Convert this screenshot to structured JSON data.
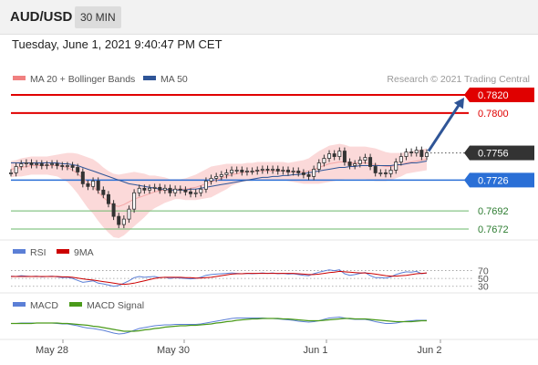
{
  "header": {
    "symbol": "AUD/USD",
    "timeframe": "30 MIN"
  },
  "timestamp": "Tuesday, June 1, 2021 9:40:47 PM CET",
  "legend": {
    "bollinger": {
      "label": "MA 20 + Bollinger Bands",
      "color": "#f08080"
    },
    "ma50": {
      "label": "MA 50",
      "color": "#2f5597"
    },
    "copyright": "Research © 2021 Trading Central"
  },
  "colors": {
    "resistance": "#e00000",
    "support": "#2a6fd6",
    "target": "#6ab86a",
    "current_bg": "#333333",
    "arrow": "#2f5597",
    "bb_fill": "#fbd9d9",
    "candle": "#333333"
  },
  "levels": [
    {
      "value": "0.7820",
      "type": "resistance",
      "boxed": true
    },
    {
      "value": "0.7800",
      "type": "resistance",
      "boxed": false
    },
    {
      "value": "0.7756",
      "type": "current",
      "boxed": true
    },
    {
      "value": "0.7726",
      "type": "support",
      "boxed": true
    },
    {
      "value": "0.7692",
      "type": "target",
      "boxed": false
    },
    {
      "value": "0.7672",
      "type": "target",
      "boxed": false
    }
  ],
  "rsi_panel": {
    "rsi_label": "RSI",
    "ma_label": "9MA",
    "rsi_color": "#5b7fd6",
    "ma_color": "#cc0000",
    "levels": [
      "70",
      "50",
      "30"
    ]
  },
  "macd_panel": {
    "macd_label": "MACD",
    "signal_label": "MACD Signal",
    "macd_color": "#5b7fd6",
    "signal_color": "#4a9a1a"
  },
  "x_axis": [
    "May 28",
    "May 30",
    "Jun 1",
    "Jun 2"
  ],
  "chart_data": {
    "type": "line",
    "title": "AUD/USD",
    "ylim": [
      0.7665,
      0.7826
    ],
    "price_series": [
      0.7734,
      0.7741,
      0.7744,
      0.7745,
      0.7743,
      0.7744,
      0.7742,
      0.7743,
      0.7744,
      0.7742,
      0.7741,
      0.7742,
      0.774,
      0.7735,
      0.7722,
      0.7719,
      0.7725,
      0.7715,
      0.771,
      0.77,
      0.7686,
      0.7677,
      0.7683,
      0.7694,
      0.7712,
      0.7717,
      0.7715,
      0.7717,
      0.7718,
      0.7715,
      0.7717,
      0.7712,
      0.7716,
      0.7715,
      0.7713,
      0.7711,
      0.7712,
      0.7716,
      0.7725,
      0.7728,
      0.773,
      0.7732,
      0.7734,
      0.7737,
      0.7737,
      0.7735,
      0.7736,
      0.7736,
      0.7737,
      0.7738,
      0.7737,
      0.7738,
      0.7736,
      0.7737,
      0.7735,
      0.7736,
      0.7734,
      0.7732,
      0.773,
      0.7738,
      0.7745,
      0.775,
      0.7755,
      0.7752,
      0.7758,
      0.7746,
      0.7742,
      0.7744,
      0.7748,
      0.7751,
      0.7741,
      0.7734,
      0.7734,
      0.7733,
      0.7737,
      0.7746,
      0.7752,
      0.7757,
      0.7756,
      0.7759,
      0.7752,
      0.7756
    ],
    "ma20": [
      0.7738,
      0.7739,
      0.774,
      0.7741,
      0.7742,
      0.7742,
      0.7742,
      0.7742,
      0.7742,
      0.7742,
      0.7741,
      0.774,
      0.7737,
      0.7733,
      0.7728,
      0.7723,
      0.7719,
      0.7713,
      0.7707,
      0.7702,
      0.7698,
      0.7697,
      0.7699,
      0.7702,
      0.7705,
      0.7707,
      0.7709,
      0.7711,
      0.7713,
      0.7714,
      0.7715,
      0.7715,
      0.7716,
      0.7716,
      0.7716,
      0.7717,
      0.7718,
      0.772,
      0.7722,
      0.7724,
      0.7726,
      0.7728,
      0.773,
      0.7732,
      0.7733,
      0.7734,
      0.7735,
      0.7735,
      0.7736,
      0.7736,
      0.7736,
      0.7736,
      0.7736,
      0.7736,
      0.7735,
      0.7735,
      0.7735,
      0.7735,
      0.7736,
      0.7738,
      0.774,
      0.7742,
      0.7744,
      0.7745,
      0.7746,
      0.7746,
      0.7745,
      0.7745,
      0.7745,
      0.7745,
      0.7744,
      0.7743,
      0.7742,
      0.7741,
      0.7741,
      0.7742,
      0.7743,
      0.7745,
      0.7746,
      0.7747,
      0.7748,
      0.7749
    ],
    "bb_width": [
      0.0009,
      0.0009,
      0.001,
      0.001,
      0.001,
      0.001,
      0.001,
      0.001,
      0.0011,
      0.0012,
      0.0014,
      0.0016,
      0.0019,
      0.0022,
      0.0025,
      0.0028,
      0.003,
      0.0032,
      0.0033,
      0.0034,
      0.0035,
      0.0035,
      0.0034,
      0.0032,
      0.003,
      0.0027,
      0.0024,
      0.002,
      0.0018,
      0.0016,
      0.0014,
      0.0012,
      0.0011,
      0.0011,
      0.0012,
      0.0013,
      0.0014,
      0.0015,
      0.0016,
      0.0017,
      0.0016,
      0.0015,
      0.0014,
      0.0012,
      0.0011,
      0.001,
      0.001,
      0.001,
      0.001,
      0.001,
      0.001,
      0.001,
      0.001,
      0.001,
      0.001,
      0.0011,
      0.0012,
      0.0013,
      0.0014,
      0.0016,
      0.0018,
      0.0019,
      0.002,
      0.002,
      0.002,
      0.0019,
      0.0018,
      0.0018,
      0.0018,
      0.0018,
      0.0018,
      0.0018,
      0.0017,
      0.0016,
      0.0015,
      0.0014,
      0.0013,
      0.0012,
      0.0012,
      0.0012,
      0.0012,
      0.0012
    ],
    "ma50": [
      0.7745,
      0.7745,
      0.7745,
      0.7745,
      0.7745,
      0.7745,
      0.7745,
      0.7745,
      0.7745,
      0.7745,
      0.7744,
      0.7744,
      0.7743,
      0.7742,
      0.774,
      0.7738,
      0.7736,
      0.7734,
      0.7732,
      0.773,
      0.7728,
      0.7726,
      0.7724,
      0.7722,
      0.7721,
      0.772,
      0.7719,
      0.7718,
      0.7717,
      0.7716,
      0.7716,
      0.7715,
      0.7715,
      0.7715,
      0.7715,
      0.7716,
      0.7716,
      0.7717,
      0.7718,
      0.7719,
      0.772,
      0.7721,
      0.7722,
      0.7723,
      0.7724,
      0.7725,
      0.7726,
      0.7727,
      0.7728,
      0.7729,
      0.7729,
      0.773,
      0.773,
      0.7731,
      0.7731,
      0.7732,
      0.7732,
      0.7733,
      0.7734,
      0.7735,
      0.7736,
      0.7737,
      0.7738,
      0.7739,
      0.774,
      0.774,
      0.7741,
      0.7741,
      0.7742,
      0.7742,
      0.7742,
      0.7742,
      0.7742,
      0.7742,
      0.7742,
      0.7743,
      0.7743,
      0.7744,
      0.7745,
      0.7745,
      0.7746,
      0.7747
    ],
    "rsi": [
      56,
      55,
      57,
      56,
      55,
      56,
      54,
      55,
      56,
      54,
      52,
      53,
      50,
      45,
      40,
      42,
      44,
      38,
      36,
      33,
      30,
      32,
      38,
      44,
      52,
      55,
      53,
      54,
      55,
      52,
      53,
      50,
      52,
      51,
      50,
      49,
      50,
      53,
      58,
      60,
      61,
      62,
      63,
      64,
      63,
      62,
      63,
      62,
      63,
      64,
      63,
      64,
      62,
      63,
      61,
      62,
      60,
      58,
      57,
      62,
      66,
      69,
      72,
      70,
      72,
      62,
      58,
      60,
      63,
      65,
      57,
      52,
      52,
      51,
      54,
      60,
      64,
      67,
      66,
      68,
      62,
      64
    ],
    "rsi_ma": [
      55,
      55,
      55,
      55,
      55,
      55,
      55,
      55,
      55,
      55,
      54,
      54,
      53,
      51,
      49,
      47,
      46,
      44,
      42,
      40,
      38,
      36,
      35,
      36,
      38,
      41,
      44,
      47,
      50,
      52,
      53,
      53,
      53,
      53,
      52,
      52,
      51,
      51,
      52,
      53,
      55,
      57,
      59,
      61,
      62,
      62,
      63,
      63,
      63,
      63,
      63,
      63,
      63,
      63,
      63,
      63,
      62,
      61,
      60,
      60,
      61,
      63,
      65,
      66,
      68,
      67,
      66,
      65,
      64,
      64,
      63,
      61,
      59,
      57,
      56,
      56,
      57,
      58,
      60,
      62,
      63,
      64
    ],
    "macd": [
      0.0001,
      0.0001,
      0.0002,
      0.0002,
      0.0002,
      0.0002,
      0.0002,
      0.0002,
      0.0002,
      0.0001,
      0.0,
      0.0,
      -0.0002,
      -0.0004,
      -0.0007,
      -0.0009,
      -0.001,
      -0.0012,
      -0.0014,
      -0.0017,
      -0.002,
      -0.0022,
      -0.0021,
      -0.0018,
      -0.0014,
      -0.001,
      -0.0008,
      -0.0006,
      -0.0004,
      -0.0003,
      -0.0002,
      -0.0002,
      -0.0001,
      -0.0001,
      -0.0001,
      -0.0001,
      -0.0001,
      0.0,
      0.0002,
      0.0004,
      0.0006,
      0.0008,
      0.001,
      0.0012,
      0.0013,
      0.0013,
      0.0013,
      0.0013,
      0.0013,
      0.0013,
      0.0012,
      0.0012,
      0.0011,
      0.001,
      0.0009,
      0.0008,
      0.0006,
      0.0005,
      0.0004,
      0.0005,
      0.0007,
      0.001,
      0.0013,
      0.0014,
      0.0015,
      0.0013,
      0.0011,
      0.001,
      0.001,
      0.001,
      0.0008,
      0.0005,
      0.0003,
      0.0001,
      0.0001,
      0.0002,
      0.0004,
      0.0006,
      0.0007,
      0.0008,
      0.0008,
      0.0008
    ],
    "macd_signal": [
      0.0001,
      0.0001,
      0.0001,
      0.0001,
      0.0001,
      0.0002,
      0.0002,
      0.0002,
      0.0002,
      0.0002,
      0.0001,
      0.0001,
      0.0,
      -0.0001,
      -0.0002,
      -0.0003,
      -0.0005,
      -0.0006,
      -0.0008,
      -0.001,
      -0.0012,
      -0.0014,
      -0.0016,
      -0.0016,
      -0.0016,
      -0.0015,
      -0.0013,
      -0.0012,
      -0.001,
      -0.0009,
      -0.0007,
      -0.0006,
      -0.0005,
      -0.0004,
      -0.0004,
      -0.0003,
      -0.0003,
      -0.0002,
      -0.0001,
      0.0,
      0.0002,
      0.0003,
      0.0005,
      0.0006,
      0.0008,
      0.0009,
      0.001,
      0.0011,
      0.0011,
      0.0012,
      0.0012,
      0.0012,
      0.0012,
      0.0011,
      0.0011,
      0.001,
      0.0009,
      0.0008,
      0.0007,
      0.0007,
      0.0007,
      0.0008,
      0.0009,
      0.001,
      0.0011,
      0.0012,
      0.0012,
      0.0011,
      0.0011,
      0.0011,
      0.001,
      0.0009,
      0.0008,
      0.0007,
      0.0006,
      0.0005,
      0.0005,
      0.0005,
      0.0005,
      0.0006,
      0.0007,
      0.0007
    ]
  }
}
